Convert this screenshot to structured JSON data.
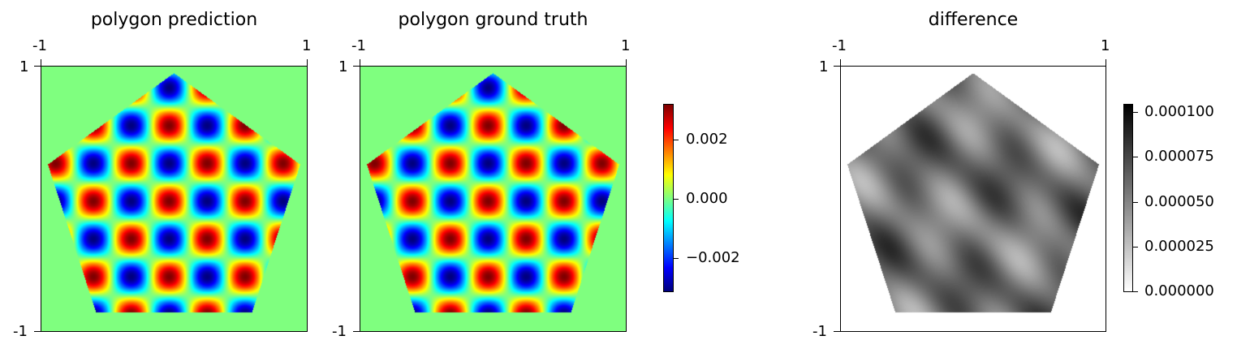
{
  "chart_data": [
    {
      "type": "heatmap",
      "title": "polygon prediction",
      "xlim": [
        -1,
        1
      ],
      "ylim": [
        -1,
        1
      ],
      "x_tick_labels": [
        "-1",
        "1"
      ],
      "y_tick_labels": [
        "1",
        "-1"
      ],
      "x_ticks_position": "top",
      "shape": "regular pentagon",
      "background_value": 0.0,
      "pattern": "checkerboard of alternating positive and negative peaks",
      "value_range": [
        -0.003,
        0.003
      ],
      "colormap": "jet"
    },
    {
      "type": "heatmap",
      "title": "polygon ground truth",
      "xlim": [
        -1,
        1
      ],
      "ylim": [
        -1,
        1
      ],
      "x_tick_labels": [
        "-1",
        "1"
      ],
      "y_tick_labels": [
        "1",
        "-1"
      ],
      "x_ticks_position": "top",
      "shape": "regular pentagon",
      "background_value": 0.0,
      "pattern": "checkerboard of alternating positive and negative peaks",
      "value_range": [
        -0.003,
        0.003
      ],
      "colormap": "jet",
      "colorbar": {
        "tick_labels": [
          "0.002",
          "0.000",
          "−0.002"
        ],
        "ticks": [
          0.002,
          0.0,
          -0.002
        ],
        "range": [
          -0.003,
          0.003
        ]
      }
    },
    {
      "type": "heatmap",
      "title": "difference",
      "xlim": [
        -1,
        1
      ],
      "ylim": [
        -1,
        1
      ],
      "x_tick_labels": [
        "-1",
        "1"
      ],
      "y_tick_labels": [
        "1",
        "-1"
      ],
      "x_ticks_position": "top",
      "shape": "regular pentagon",
      "colormap": "gray_r",
      "value_range": [
        0.0,
        0.000103
      ],
      "colorbar": {
        "tick_labels": [
          "0.000100",
          "0.000075",
          "0.000050",
          "0.000025",
          "0.000000"
        ],
        "ticks": [
          0.0001,
          7.5e-05,
          5e-05,
          2.5e-05,
          0.0
        ],
        "range": [
          0.0,
          0.000103
        ]
      }
    }
  ]
}
